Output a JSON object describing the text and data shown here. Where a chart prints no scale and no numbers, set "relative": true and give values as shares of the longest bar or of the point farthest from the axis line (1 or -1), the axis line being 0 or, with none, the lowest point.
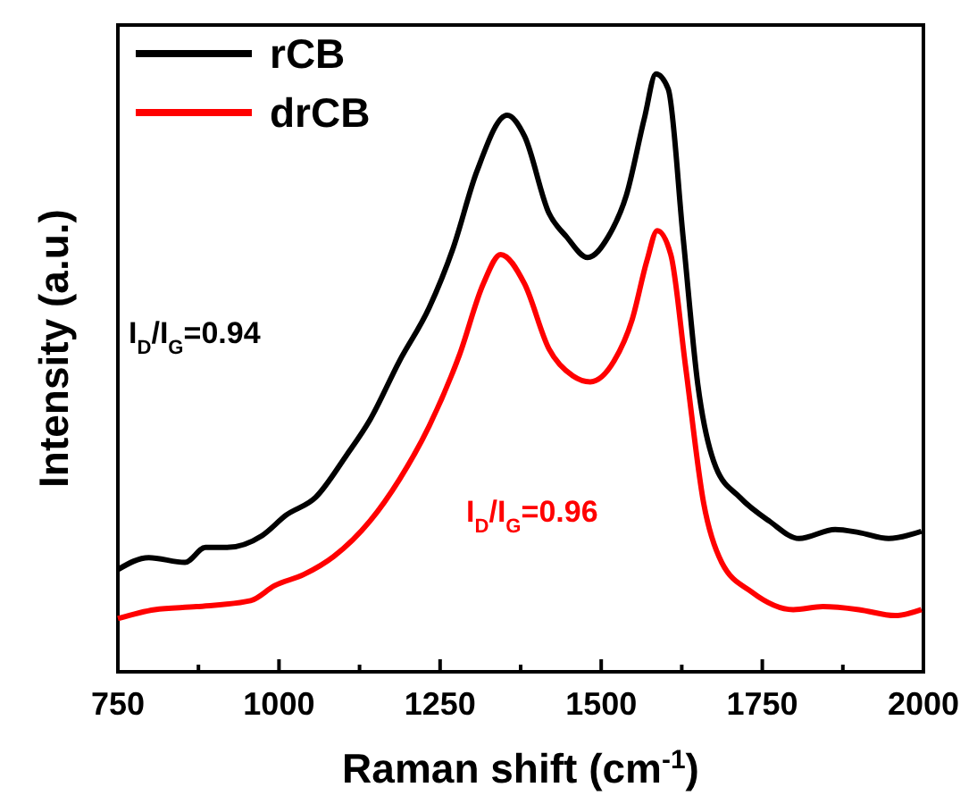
{
  "chart_data": {
    "type": "line",
    "xlabel": "Raman shift (cm$^{-1}$)",
    "ylabel": "Intensity (a.u.)",
    "relative": true,
    "legend": "top left",
    "tick_labels": "x",
    "xlim": [
      750,
      2000
    ],
    "xticks": [
      750,
      {
        "value": 875,
        "label": null
      },
      1000,
      {
        "value": 1125,
        "label": null
      },
      1250,
      {
        "value": 1375,
        "label": null
      },
      1500,
      {
        "value": 1625,
        "label": null
      },
      1750,
      {
        "value": 1875,
        "label": null
      },
      2000
    ],
    "x": [
      750,
      798,
      854,
      886,
      919,
      974,
      1011,
      1057,
      1104,
      1141,
      1187,
      1233,
      1270,
      1307,
      1354,
      1381,
      1419,
      1446,
      1479,
      1511,
      1539,
      1567,
      1585,
      1604,
      1627,
      1650,
      1678,
      1715,
      1761,
      1807,
      1863,
      1900,
      1946,
      1997
    ],
    "annotations": [
      "I$_{D}$/I$_{G}$=0.94",
      "I$_{D}$/I$_{G}$=0.96"
    ],
    "series": [
      {
        "name": "rCB",
        "color": "#000000",
        "values": [
          0.171,
          0.191,
          0.183,
          0.208,
          0.208,
          0.228,
          0.262,
          0.292,
          0.361,
          0.421,
          0.52,
          0.609,
          0.708,
          0.837,
          0.931,
          0.896,
          0.767,
          0.728,
          0.693,
          0.728,
          0.797,
          0.926,
          1,
          0.975,
          0.728,
          0.48,
          0.342,
          0.292,
          0.252,
          0.223,
          0.238,
          0.233,
          0.223,
          0.235
        ]
      },
      {
        "name": "drCB",
        "color": "#ff0000",
        "x": [
          750,
          807,
          872,
          956,
          993,
          1039,
          1085,
          1141,
          1187,
          1233,
          1280,
          1317,
          1344,
          1381,
          1419,
          1456,
          1483,
          1520,
          1548,
          1571,
          1587,
          1608,
          1631,
          1659,
          1687,
          1733,
          1798,
          1844,
          1900,
          1956,
          1997
        ],
        "values": [
          0.089,
          0.104,
          0.109,
          0.119,
          0.144,
          0.163,
          0.193,
          0.252,
          0.322,
          0.411,
          0.53,
          0.649,
          0.698,
          0.649,
          0.54,
          0.495,
          0.485,
          0.52,
          0.589,
          0.688,
          0.738,
          0.698,
          0.51,
          0.282,
          0.183,
          0.134,
          0.104,
          0.109,
          0.104,
          0.094,
          0.104
        ]
      }
    ]
  }
}
